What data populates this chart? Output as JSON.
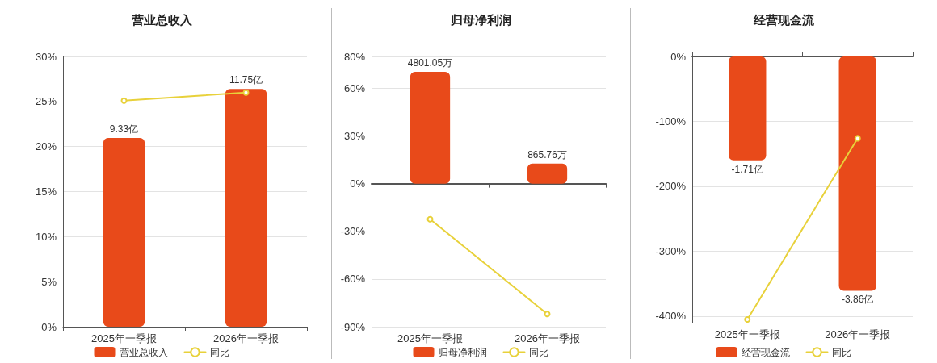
{
  "chart_data": [
    {
      "type": "bar",
      "title": "营业总收入",
      "categories": [
        "2025年一季报",
        "2026年一季报"
      ],
      "series": [
        {
          "name": "营业总收入",
          "color": "#e84a1a",
          "values": [
            9.33,
            11.75
          ],
          "value_labels": [
            "9.33亿",
            "11.75亿"
          ],
          "axis": "y2"
        },
        {
          "type": "line",
          "name": "同比",
          "color": "#e8d13a",
          "values": [
            25.1,
            26.0
          ],
          "marker": "circle"
        }
      ],
      "ylim": [
        0,
        30
      ],
      "yticks": [
        {
          "value": 0,
          "label": "0%"
        },
        {
          "value": 5,
          "label": "5%"
        },
        {
          "value": 10,
          "label": "10%"
        },
        {
          "value": 15,
          "label": "15%"
        },
        {
          "value": 20,
          "label": "20%"
        },
        {
          "value": 25,
          "label": "25%"
        },
        {
          "value": 30,
          "label": "30%"
        }
      ],
      "grid": "y",
      "legend": "bottom"
    },
    {
      "type": "bar",
      "title": "归母净利润",
      "categories": [
        "2025年一季报",
        "2026年一季报"
      ],
      "series": [
        {
          "name": "归母净利润",
          "color": "#e84a1a",
          "values": [
            4801.05,
            865.76
          ],
          "value_labels": [
            "4801.05万",
            "865.76万"
          ],
          "axis": "y2"
        },
        {
          "type": "line",
          "name": "同比",
          "color": "#e8d13a",
          "values": [
            -22.4,
            -82.0
          ],
          "marker": "circle"
        }
      ],
      "ylim": [
        -90,
        80
      ],
      "yticks": [
        {
          "value": -90,
          "label": "-90%"
        },
        {
          "value": -60,
          "label": "-60%"
        },
        {
          "value": -30,
          "label": "-30%"
        },
        {
          "value": 0,
          "label": "0%"
        },
        {
          "value": 30,
          "label": "30%"
        },
        {
          "value": 60,
          "label": "60%"
        },
        {
          "value": 80,
          "label": "80%"
        }
      ],
      "grid": "y",
      "legend": "bottom"
    },
    {
      "type": "bar",
      "title": "经营现金流",
      "categories": [
        "2025年一季报",
        "2026年一季报"
      ],
      "series": [
        {
          "name": "经营现金流",
          "color": "#e84a1a",
          "values": [
            -1.71,
            -3.86
          ],
          "value_labels": [
            "-1.71亿",
            "-3.86亿"
          ],
          "axis": "y2"
        },
        {
          "type": "line",
          "name": "同比",
          "color": "#e8d13a",
          "values": [
            -405,
            -126
          ],
          "marker": "circle"
        }
      ],
      "ylim": [
        -410,
        0
      ],
      "yticks": [
        {
          "value": -400,
          "label": "-400%"
        },
        {
          "value": -300,
          "label": "-300%"
        },
        {
          "value": -200,
          "label": "-200%"
        },
        {
          "value": -100,
          "label": "-100%"
        },
        {
          "value": 0,
          "label": "0%"
        }
      ],
      "grid": "y",
      "legend": "bottom"
    }
  ]
}
